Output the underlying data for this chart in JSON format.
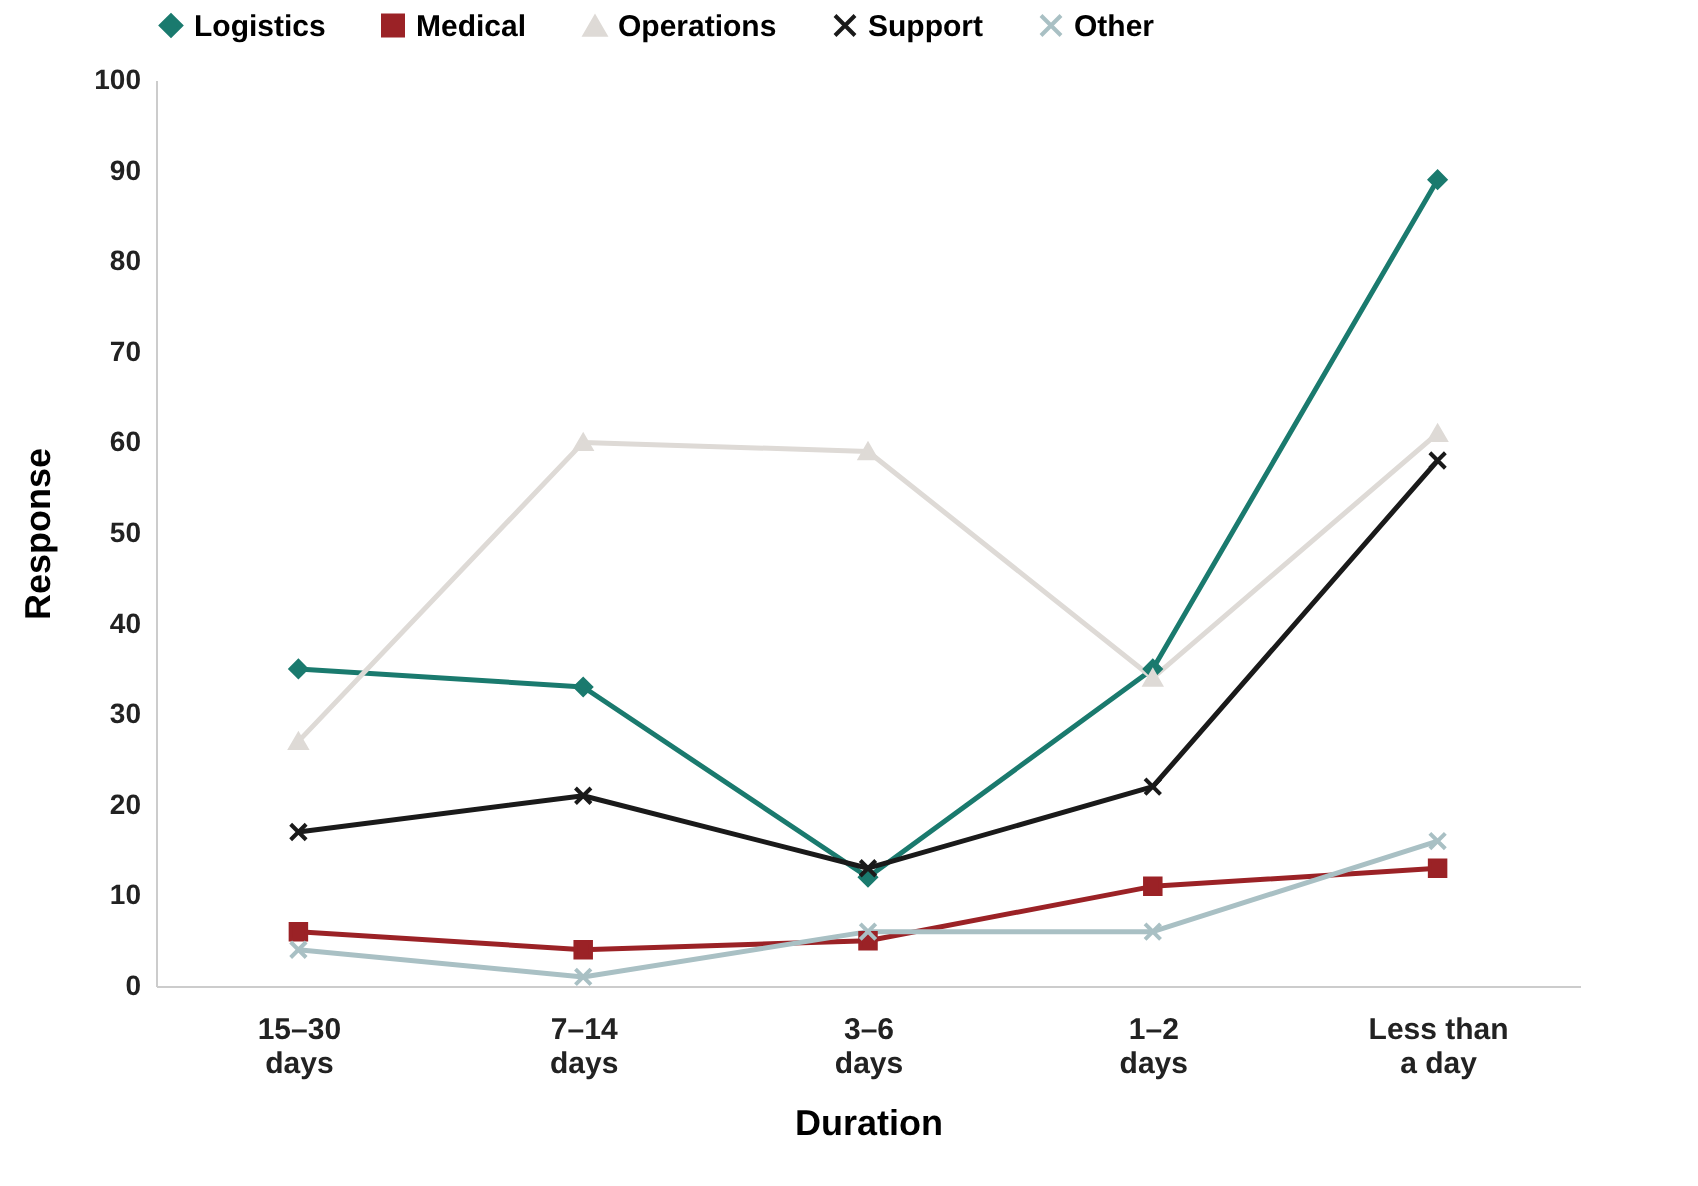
{
  "chart_data": {
    "type": "line",
    "xlabel": "Duration",
    "ylabel": "Response",
    "categories": [
      "15–30 days",
      "7–14 days",
      "3–6 days",
      "1–2 days",
      "Less than a day"
    ],
    "series": [
      {
        "name": "Logistics",
        "color": "#1a7a6e",
        "marker": "diamond",
        "values": [
          35,
          33,
          12,
          35,
          89
        ]
      },
      {
        "name": "Medical",
        "color": "#9b2226",
        "marker": "square",
        "values": [
          6,
          4,
          5,
          11,
          13
        ]
      },
      {
        "name": "Operations",
        "color": "#dedad6",
        "marker": "triangle",
        "values": [
          27,
          60,
          59,
          34,
          61
        ]
      },
      {
        "name": "Support",
        "color": "#1a1a1a",
        "marker": "cross",
        "values": [
          17,
          21,
          13,
          22,
          58
        ]
      },
      {
        "name": "Other",
        "color": "#a9c0c4",
        "marker": "cross",
        "values": [
          4,
          1,
          6,
          6,
          16
        ]
      }
    ],
    "ylim": [
      0,
      100
    ],
    "yticks": [
      0,
      10,
      20,
      30,
      40,
      50,
      60,
      70,
      80,
      90,
      100
    ],
    "grid": false,
    "legend": "top",
    "line_style": "solid"
  }
}
